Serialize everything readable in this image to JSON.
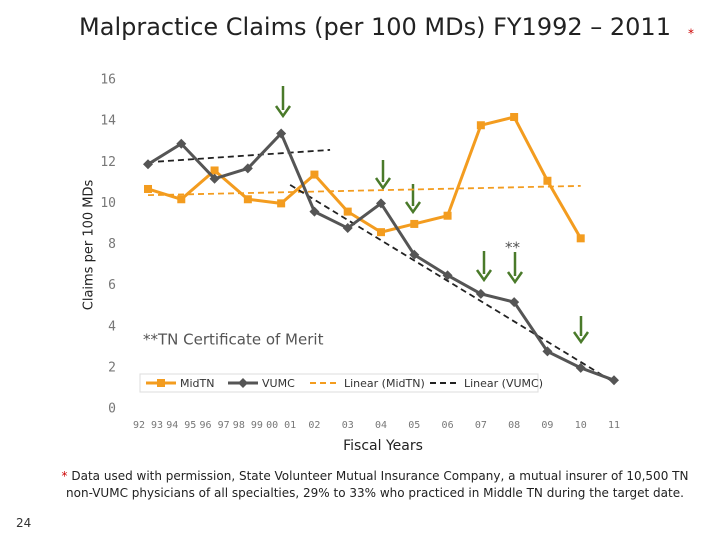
{
  "chart_data": {
    "type": "line",
    "title": "Malpractice Claims (per 100 MDs) FY1992 – 2011",
    "title_marker": "*",
    "y_label": "Claims per 100 MDs",
    "x_label": "Fiscal Years",
    "categories": [
      "92 93",
      "94 95",
      "96 97",
      "98 99",
      "00 01",
      "02",
      "03",
      "04",
      "05",
      "06",
      "07",
      "08",
      "09",
      "10",
      "11"
    ],
    "ylim": [
      0,
      16
    ],
    "yticks": [
      0,
      2,
      4,
      6,
      8,
      10,
      12,
      14,
      16
    ],
    "grid": false,
    "series": [
      {
        "name": "MidTN",
        "color": "#f39c1f",
        "marker": "square",
        "values": [
          10.7,
          10.2,
          11.6,
          10.2,
          10.0,
          11.4,
          9.6,
          8.6,
          9.0,
          9.4,
          13.8,
          14.2,
          11.1,
          8.3,
          null
        ]
      },
      {
        "name": "VUMC",
        "color": "#555555",
        "marker": "diamond",
        "values": [
          11.9,
          12.9,
          11.2,
          11.7,
          13.4,
          9.6,
          8.8,
          10.0,
          7.5,
          6.5,
          5.6,
          5.2,
          2.8,
          2.0,
          1.4
        ]
      }
    ],
    "trendlines": [
      {
        "name": "Linear (MidTN)",
        "color": "#f39c1f",
        "segments": [
          [
            0,
            10.4,
            13,
            10.85
          ]
        ]
      },
      {
        "name": "Linear (VUMC)",
        "color": "#222222",
        "segments": [
          [
            0,
            12.0,
            5.47,
            12.6
          ],
          [
            4.27,
            10.9,
            14,
            1.3
          ]
        ]
      }
    ],
    "annotations": [
      "**",
      "**TN Certificate of Merit"
    ]
  },
  "footnote": {
    "marker": "*",
    "text": "Data used with permission, State Volunteer Mutual Insurance Company, a mutual insurer of 10,500 TN non-VUMC physicians of all specialties, 29% to 33% who practiced in Middle TN during the target date."
  },
  "page_number": "24"
}
